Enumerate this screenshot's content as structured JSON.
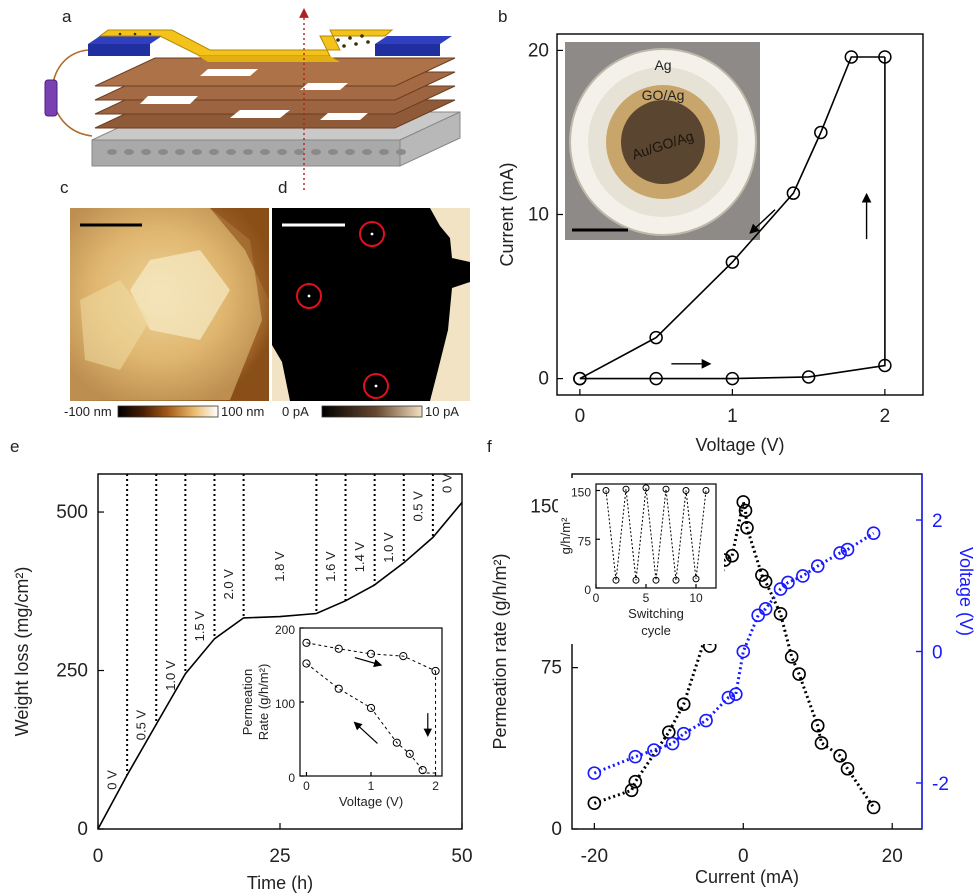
{
  "panels": {
    "a": {
      "label": "a"
    },
    "b": {
      "label": "b"
    },
    "c": {
      "label": "c",
      "colorbar": {
        "min": "-100 nm",
        "max": "100 nm"
      }
    },
    "d": {
      "label": "d",
      "colorbar": {
        "min": "0 pA",
        "max": "10 pA"
      }
    },
    "e": {
      "label": "e"
    },
    "f": {
      "label": "f"
    }
  },
  "colors": {
    "black_series": "#000000",
    "blue_series": "#1a1aff",
    "inset_ring_ag": "#e9e6da",
    "inset_ring_go": "#d9c9a6",
    "inset_core": "#b89552",
    "afm_dark": "#7a4410",
    "afm_light": "#f0e0a8",
    "circle_red": "#e0101e"
  },
  "chart_data": [
    {
      "id": "b",
      "type": "line",
      "xlabel": "Voltage (V)",
      "ylabel": "Current (mA)",
      "xlim": [
        -0.15,
        2.25
      ],
      "ylim": [
        -1,
        21
      ],
      "xticks": [
        0,
        1,
        2
      ],
      "yticks": [
        0,
        10,
        20
      ],
      "series": [
        {
          "x": [
            0,
            0.5,
            1.0,
            1.5,
            2.0,
            2.0
          ],
          "y": [
            0,
            0,
            0,
            0.1,
            0.8,
            19.6
          ]
        },
        {
          "x": [
            2.0,
            1.78,
            1.58,
            1.4,
            1.0,
            0.5,
            0
          ],
          "y": [
            19.6,
            19.6,
            15.0,
            11.3,
            7.1,
            2.5,
            0
          ]
        }
      ],
      "inset_photo": {
        "labels": [
          "Ag",
          "GO/Ag",
          "Au/GO/Ag"
        ]
      }
    },
    {
      "id": "e",
      "type": "line",
      "xlabel": "Time (h)",
      "ylabel": "Weight loss (mg/cm²)",
      "xlim": [
        0,
        50
      ],
      "ylim": [
        0,
        560
      ],
      "xticks": [
        0,
        25,
        50
      ],
      "yticks": [
        0,
        250,
        500
      ],
      "series": [
        {
          "x": [
            0,
            4,
            8,
            12,
            16,
            20,
            25,
            30,
            34,
            38,
            42,
            46,
            50
          ],
          "y": [
            0,
            85,
            165,
            245,
            300,
            333,
            335,
            340,
            360,
            385,
            420,
            460,
            515
          ]
        }
      ],
      "dividers": [
        4,
        8,
        12,
        16,
        20,
        30,
        34,
        38,
        42,
        46
      ],
      "annotations": [
        {
          "text": "0 V",
          "x": 2,
          "y": 62
        },
        {
          "text": "0.5 V",
          "x": 6,
          "y": 140
        },
        {
          "text": "1.0 V",
          "x": 10,
          "y": 218
        },
        {
          "text": "1.5 V",
          "x": 14,
          "y": 296
        },
        {
          "text": "2.0 V",
          "x": 18,
          "y": 362
        },
        {
          "text": "1.8 V",
          "x": 25,
          "y": 390
        },
        {
          "text": "1.6 V",
          "x": 32,
          "y": 390
        },
        {
          "text": "1.4 V",
          "x": 36,
          "y": 405
        },
        {
          "text": "1.0 V",
          "x": 40,
          "y": 420
        },
        {
          "text": "0.5 V",
          "x": 44,
          "y": 485
        },
        {
          "text": "0 V",
          "x": 48,
          "y": 530
        }
      ],
      "inset": {
        "type": "scatter",
        "xlabel": "Voltage (V)",
        "ylabel": [
          "Permeation",
          "Rate  (g/h/m²)"
        ],
        "xlim": [
          -0.1,
          2.1
        ],
        "ylim": [
          0,
          200
        ],
        "xticks": [
          0,
          1,
          2
        ],
        "yticks": [
          0,
          100,
          200
        ],
        "series": [
          {
            "x": [
              0,
              0.5,
              1.0,
              1.5,
              2.0
            ],
            "y": [
              180,
              172,
              165,
              162,
              142
            ]
          },
          {
            "x": [
              0,
              0.5,
              1.0,
              1.4,
              1.6,
              1.8
            ],
            "y": [
              152,
              118,
              92,
              45,
              30,
              8
            ]
          }
        ]
      }
    },
    {
      "id": "f",
      "type": "scatter",
      "xlabel": "Current (mA)",
      "ylabel": "Permeation rate (g/h/m²)",
      "y2label": "Voltage (V)",
      "xlim": [
        -23,
        24
      ],
      "ylim": [
        0,
        165
      ],
      "y2lim": [
        -2.7,
        2.7
      ],
      "xticks": [
        -20,
        0,
        20
      ],
      "yticks": [
        0,
        75,
        150
      ],
      "y2ticks": [
        -2,
        0,
        2
      ],
      "series": [
        {
          "name": "permeation",
          "axis": "left",
          "x": [
            -20,
            -15,
            -14.5,
            -10,
            -8,
            -5,
            -4.5,
            -2.5,
            -1.5,
            0,
            0.3,
            0.5,
            2.5,
            3,
            5,
            6.5,
            7.5,
            10,
            10.5,
            13,
            14,
            17.5
          ],
          "y": [
            12,
            18,
            22,
            45,
            58,
            90,
            85,
            125,
            127,
            152,
            148,
            140,
            118,
            115,
            100,
            80,
            72,
            48,
            40,
            34,
            28,
            10
          ]
        },
        {
          "name": "voltage",
          "axis": "right",
          "x": [
            -20,
            -14.5,
            -12,
            -9.5,
            -8,
            -5,
            -2,
            -1,
            0,
            2,
            3,
            5,
            6,
            8,
            10,
            13,
            14,
            17.5
          ],
          "y": [
            -1.85,
            -1.6,
            -1.5,
            -1.4,
            -1.25,
            -1.05,
            -0.7,
            -0.65,
            0.0,
            0.55,
            0.65,
            0.95,
            1.05,
            1.15,
            1.3,
            1.5,
            1.55,
            1.8
          ]
        }
      ],
      "inset": {
        "type": "line",
        "xlabel": [
          "Switching",
          "cycle"
        ],
        "ylabel": "g/h/m²",
        "xlim": [
          0,
          12
        ],
        "ylim": [
          0,
          160
        ],
        "xticks": [
          0,
          5,
          10
        ],
        "yticks": [
          0,
          75,
          150
        ],
        "series": [
          {
            "x": [
              1,
              2,
              3,
              4,
              5,
              6,
              7,
              8,
              9,
              10,
              11
            ],
            "y": [
              150,
              12,
              152,
              12,
              154,
              12,
              152,
              12,
              150,
              14,
              150
            ]
          }
        ]
      }
    }
  ]
}
